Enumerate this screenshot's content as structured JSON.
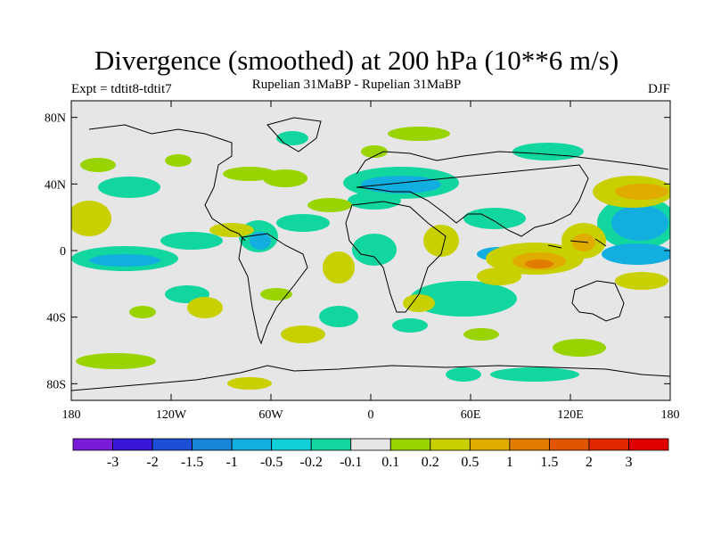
{
  "title": "Divergence (smoothed) at 200 hPa (10**6 m/s)",
  "experiment": "Expt = tdtit8-tdtit7",
  "subtitle": "Rupelian  31MaBP - Rupelian  31MaBP",
  "season": "DJF",
  "map": {
    "lon_range": [
      -180,
      180
    ],
    "lat_range": [
      -90,
      90
    ],
    "x_ticks": [
      {
        "lon": -180,
        "label": "180"
      },
      {
        "lon": -120,
        "label": "120W"
      },
      {
        "lon": -60,
        "label": "60W"
      },
      {
        "lon": 0,
        "label": "0"
      },
      {
        "lon": 60,
        "label": "60E"
      },
      {
        "lon": 120,
        "label": "120E"
      },
      {
        "lon": 180,
        "label": "180"
      }
    ],
    "y_ticks": [
      {
        "lat": 80,
        "label": "80N"
      },
      {
        "lat": 40,
        "label": "40N"
      },
      {
        "lat": 0,
        "label": "0"
      },
      {
        "lat": -40,
        "label": "40S"
      },
      {
        "lat": -80,
        "label": "80S"
      }
    ],
    "background_color": "#e6e6e6"
  },
  "colorbar": {
    "colors": [
      "#7a1bd8",
      "#3a17d8",
      "#1c4fd8",
      "#1a86d8",
      "#12aee0",
      "#10cfd8",
      "#12d6a0",
      "#e6e6e6",
      "#99d400",
      "#c8d000",
      "#e1ac00",
      "#e17c00",
      "#e15400",
      "#e12800",
      "#e10000"
    ],
    "labels": [
      "-3",
      "-2",
      "-1.5",
      "-1",
      "-0.5",
      "-0.2",
      "-0.1",
      "0.1",
      "0.2",
      "0.5",
      "1",
      "1.5",
      "2",
      "3"
    ]
  },
  "chart_data": {
    "type": "filled-contour-map",
    "variable": "Divergence (smoothed) at 200 hPa",
    "units": "10**6 m/s",
    "levels": [
      -3,
      -2,
      -1.5,
      -1,
      -0.5,
      -0.2,
      -0.1,
      0.1,
      0.2,
      0.5,
      1,
      1.5,
      2,
      3
    ],
    "features": [
      {
        "lon": 115,
        "lat": -5,
        "value": 1.5,
        "sign": "positive"
      },
      {
        "lon": 155,
        "lat": 35,
        "value": 0.5,
        "sign": "positive"
      },
      {
        "lon": 160,
        "lat": 10,
        "value": -0.5,
        "sign": "negative"
      },
      {
        "lon": 40,
        "lat": 8,
        "value": 0.5,
        "sign": "positive"
      },
      {
        "lon": 10,
        "lat": 40,
        "value": -0.2,
        "sign": "negative"
      },
      {
        "lon": -150,
        "lat": 0,
        "value": -0.5,
        "sign": "negative"
      },
      {
        "lon": -100,
        "lat": 20,
        "value": 0.2,
        "sign": "positive"
      },
      {
        "lon": -40,
        "lat": 20,
        "value": -0.2,
        "sign": "negative"
      },
      {
        "lon": -30,
        "lat": 40,
        "value": 0.2,
        "sign": "positive"
      },
      {
        "lon": 50,
        "lat": -50,
        "value": 0.2,
        "sign": "positive"
      },
      {
        "lon": -170,
        "lat": 10,
        "value": 0.5,
        "sign": "positive"
      },
      {
        "lon": 80,
        "lat": 40,
        "value": 0.2,
        "sign": "positive"
      },
      {
        "lon": -120,
        "lat": -40,
        "value": 0.2,
        "sign": "positive"
      },
      {
        "lon": -80,
        "lat": -60,
        "value": 0.2,
        "sign": "positive"
      }
    ]
  }
}
